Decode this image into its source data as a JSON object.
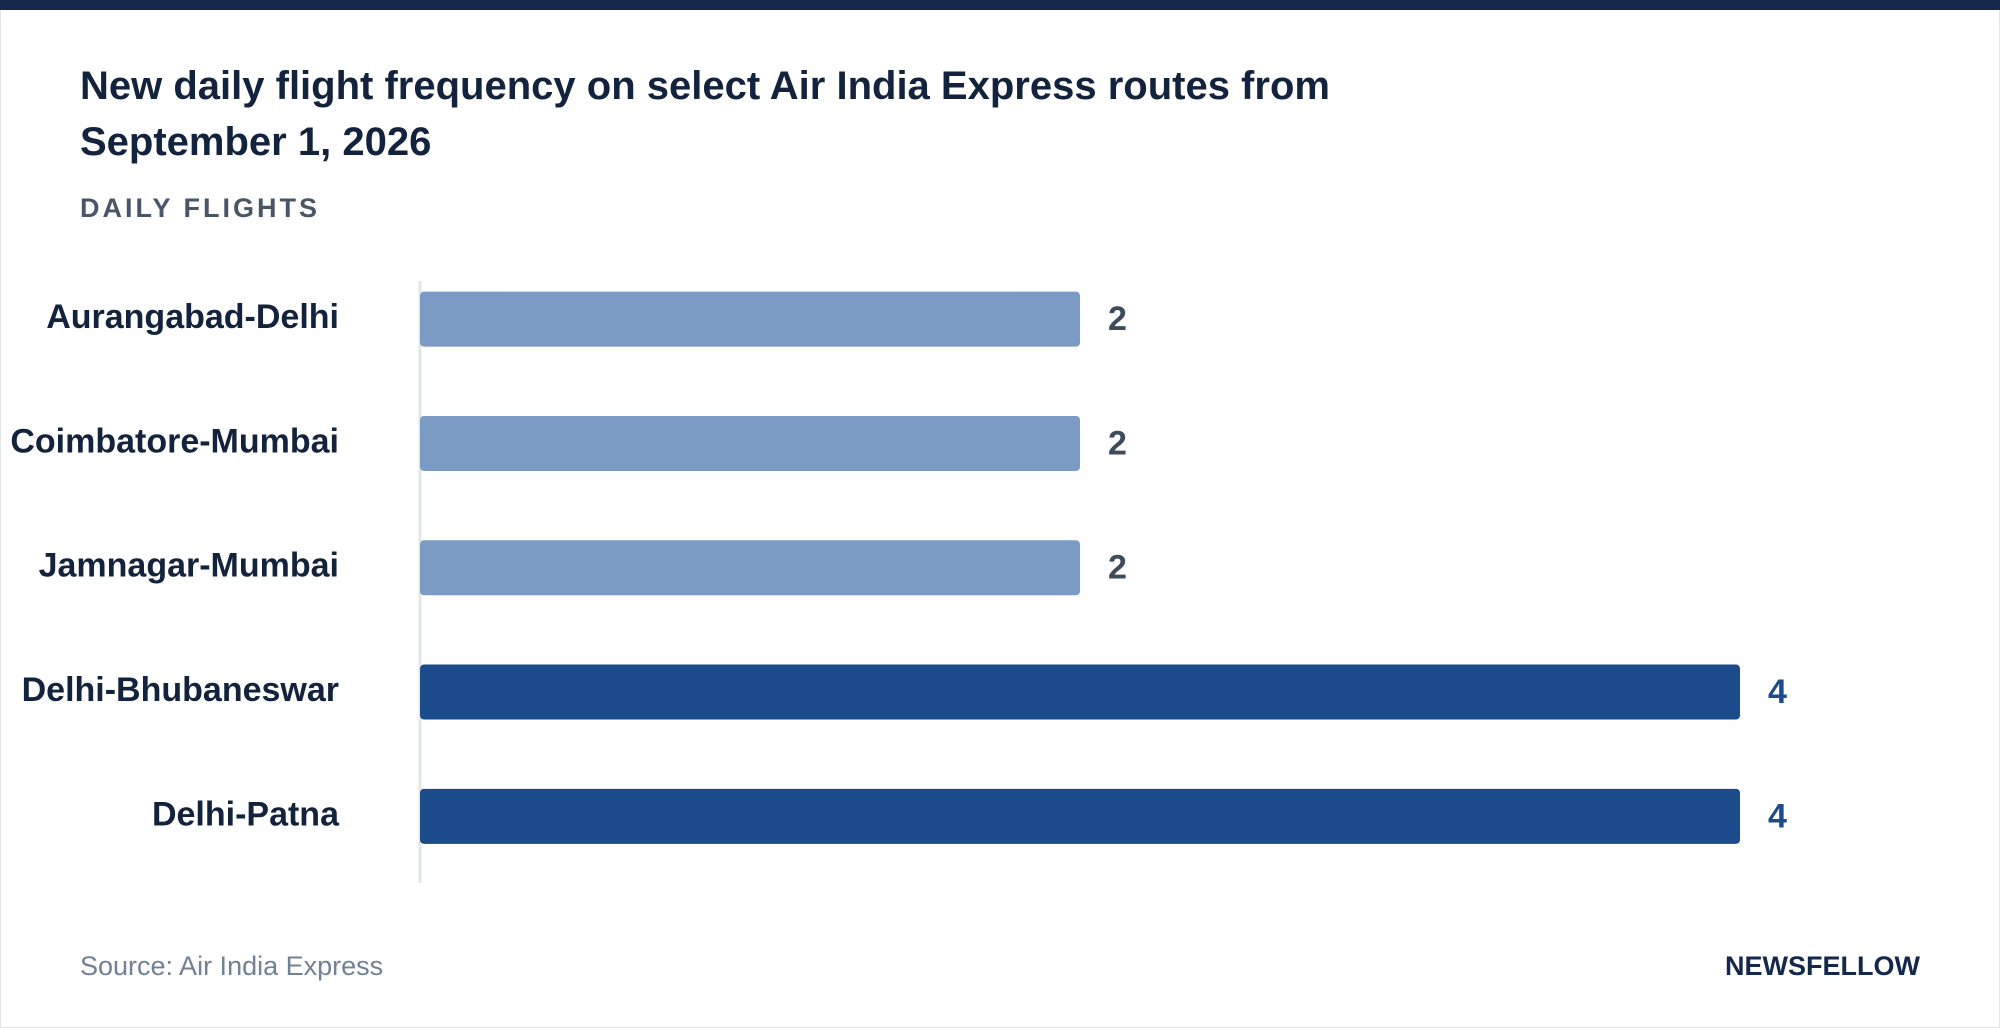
{
  "chart_data": {
    "type": "bar",
    "orientation": "horizontal",
    "title": "New daily flight frequency on select Air India Express routes from September 1, 2026",
    "subtitle": "DAILY FLIGHTS",
    "categories": [
      "Aurangabad-Delhi",
      "Coimbatore-Mumbai",
      "Jamnagar-Mumbai",
      "Delhi-Bhubaneswar",
      "Delhi-Patna"
    ],
    "values": [
      2,
      2,
      2,
      4,
      4
    ],
    "colors": [
      "#7b9ac4",
      "#7b9ac4",
      "#7b9ac4",
      "#1b4b8a",
      "#1b4b8a"
    ],
    "value_label_colors": [
      "#3f4a5a",
      "#3f4a5a",
      "#3f4a5a",
      "#1b4b8a",
      "#1b4b8a"
    ],
    "xlim": [
      0,
      4
    ],
    "source": "Source: Air India Express",
    "brand": "NEWSFELLOW"
  }
}
